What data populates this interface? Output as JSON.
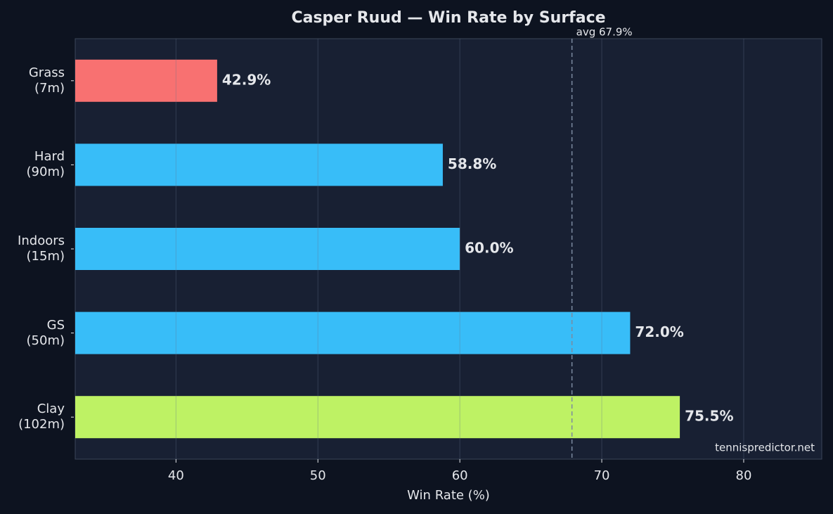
{
  "chart_data": {
    "type": "barh",
    "title": "Casper Ruud — Win Rate by Surface",
    "categories": [
      "Grass\n(7m)",
      "Hard\n(90m)",
      "Indoors\n(15m)",
      "GS\n(50m)",
      "Clay\n(102m)"
    ],
    "values": [
      42.9,
      58.8,
      60.0,
      72.0,
      75.5
    ],
    "value_labels": [
      "42.9%",
      "58.8%",
      "60.0%",
      "72.0%",
      "75.5%"
    ],
    "colors": [
      "#f87171",
      "#38bdf8",
      "#38bdf8",
      "#38bdf8",
      "#bef264"
    ],
    "xlabel": "Win Rate (%)",
    "xlim": [
      32.9,
      85.5
    ],
    "xticks": [
      40,
      50,
      60,
      70,
      80
    ],
    "grid": true,
    "avg_line": {
      "value": 67.9,
      "label": "avg 67.9%"
    },
    "watermark": "tennispredictor.net"
  }
}
